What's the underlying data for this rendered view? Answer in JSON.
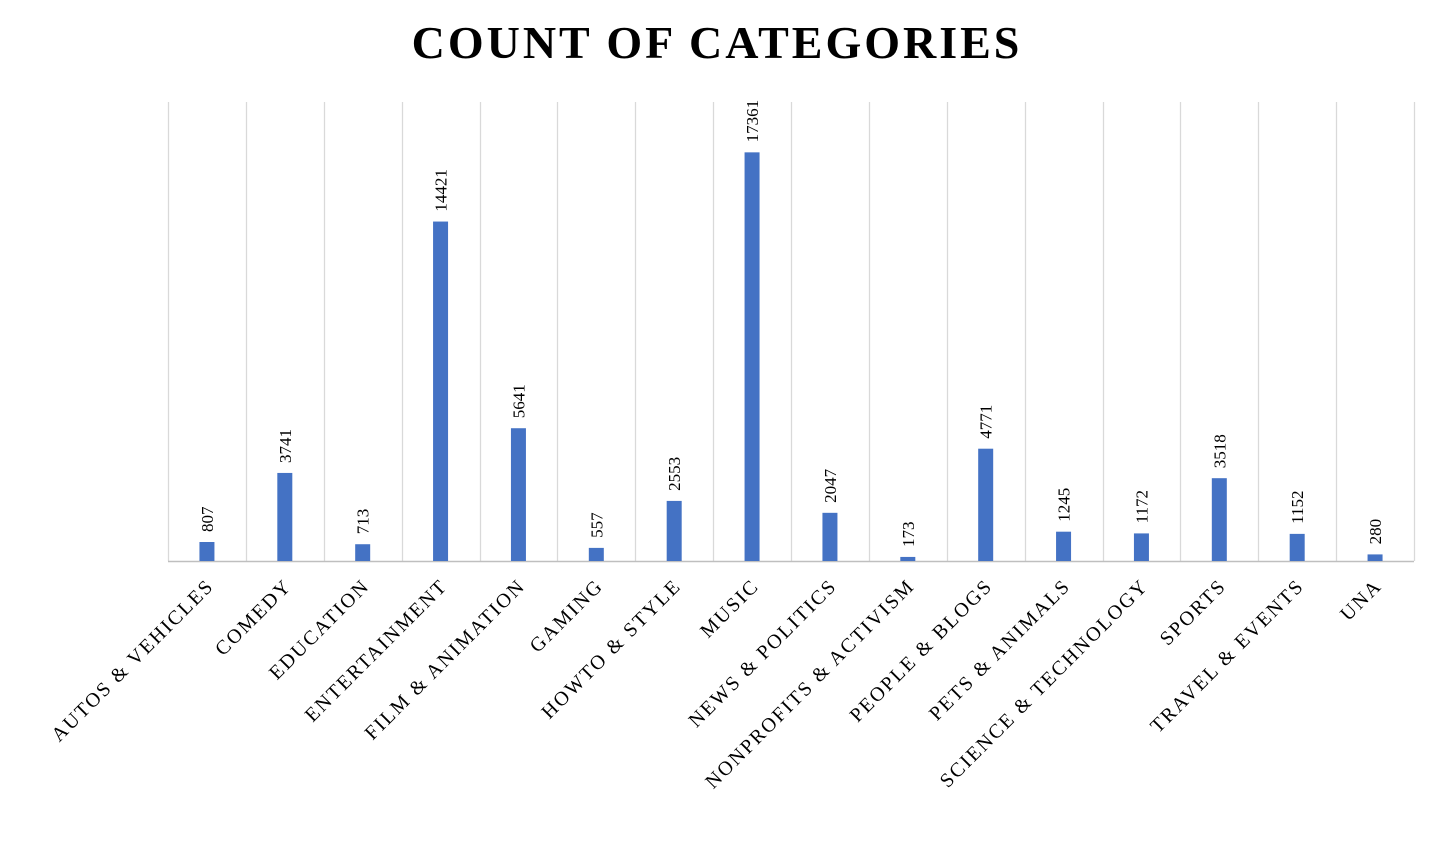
{
  "chart_data": {
    "type": "bar",
    "title": "COUNT OF CATEGORIES",
    "xlabel": "",
    "ylabel": "",
    "categories": [
      "AUTOS & VEHICLES",
      "COMEDY",
      "EDUCATION",
      "ENTERTAINMENT",
      "FILM & ANIMATION",
      "GAMING",
      "HOWTO & STYLE",
      "MUSIC",
      "NEWS & POLITICS",
      "NONPROFITS & ACTIVISM",
      "PEOPLE & BLOGS",
      "PETS & ANIMALS",
      "SCIENCE & TECHNOLOGY",
      "SPORTS",
      "TRAVEL & EVENTS",
      "UNA"
    ],
    "values": [
      807,
      3741,
      713,
      14421,
      5641,
      557,
      2553,
      17361,
      2047,
      173,
      4771,
      1245,
      1172,
      3518,
      1152,
      280
    ],
    "ylim": [
      0,
      19500
    ],
    "data_labels": true,
    "grid": "vertical",
    "legend": "none",
    "bar_color": "#4472C4",
    "grid_color": "#D9D9D9",
    "axis_color": "#BFBFBF",
    "text_color": "#000000"
  }
}
